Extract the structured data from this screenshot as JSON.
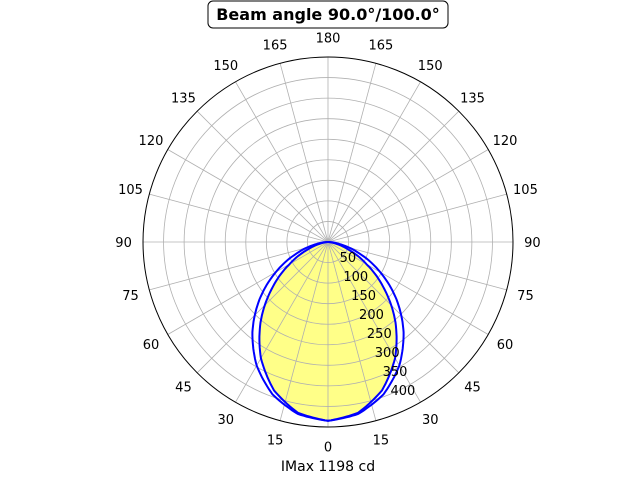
{
  "chart_data": {
    "type": "polar",
    "title": "Beam angle 90.0°/100.0°",
    "xlabel": "IMax 1198 cd",
    "angle_ticks": [
      0,
      15,
      30,
      45,
      60,
      75,
      90,
      105,
      120,
      135,
      150,
      165,
      180
    ],
    "radial_ticks": [
      50,
      100,
      150,
      200,
      250,
      300,
      350,
      400
    ],
    "rlim": [
      0,
      450
    ],
    "grid": true,
    "angles": [
      0,
      10,
      20,
      30,
      40,
      50,
      60,
      70,
      80,
      90
    ],
    "series": [
      {
        "values": [
          435,
          421.9,
          384.1,
          326.3,
          255.3,
          179.7,
          108.8,
          50.9,
          13.1,
          0
        ],
        "color": "#0000ff",
        "fill": "#ffff88"
      },
      {
        "values": [
          435,
          424.7,
          394.5,
          347.1,
          286.2,
          217.4,
          146.5,
          80.7,
          27.8,
          0
        ],
        "color": "#0000ff"
      }
    ]
  }
}
